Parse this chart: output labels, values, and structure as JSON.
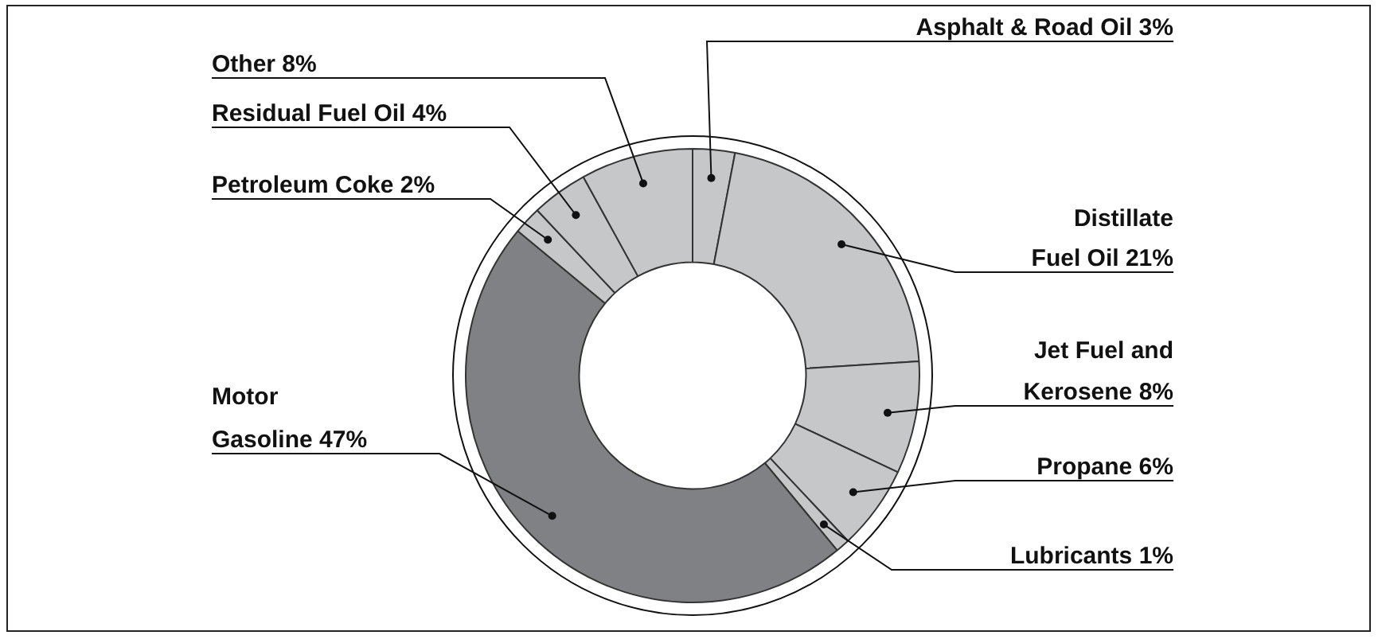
{
  "chart_data": {
    "type": "donut",
    "categories": [
      "Asphalt & Road Oil",
      "Distillate Fuel Oil",
      "Jet Fuel and Kerosene",
      "Propane",
      "Lubricants",
      "Motor Gasoline",
      "Petroleum Coke",
      "Residual Fuel Oil",
      "Other"
    ],
    "values": [
      3,
      21,
      8,
      6,
      1,
      47,
      2,
      4,
      8
    ],
    "colors": [
      "#c6c7c9",
      "#c6c7c9",
      "#c6c7c9",
      "#c6c7c9",
      "#c6c7c9",
      "#808184",
      "#c6c7c9",
      "#c6c7c9",
      "#c6c7c9"
    ],
    "value_labels": [
      "3%",
      "21%",
      "8%",
      "6%",
      "1%",
      "47%",
      "2%",
      "4%",
      "8%"
    ]
  }
}
